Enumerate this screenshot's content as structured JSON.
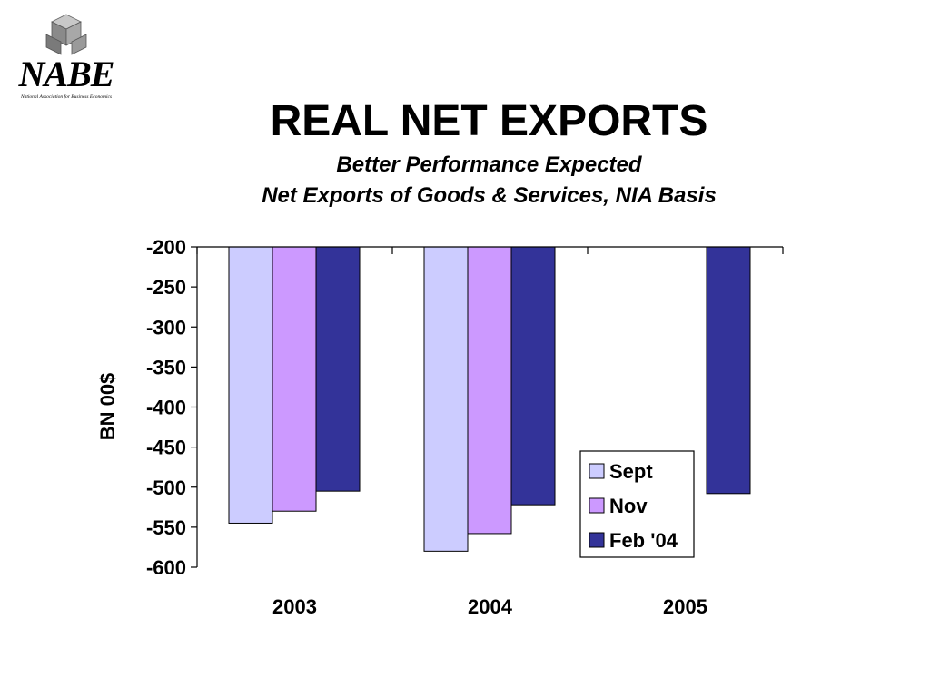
{
  "logo": {
    "name": "NABE",
    "full_name": "National Association for Business Economics"
  },
  "title": "REAL NET EXPORTS",
  "subtitle1": "Better Performance Expected",
  "subtitle2": "Net Exports of Goods & Services, NIA Basis",
  "colors": {
    "Sept": "#ccccff",
    "Nov": "#cc99ff",
    "Feb '04": "#333399"
  },
  "chart_data": {
    "type": "bar",
    "ylabel": "BN 00$",
    "xlabel": "",
    "ylim": [
      -600,
      -200
    ],
    "yticks": [
      -200,
      -250,
      -300,
      -350,
      -400,
      -450,
      -500,
      -550,
      -600
    ],
    "categories": [
      "2003",
      "2004",
      "2005"
    ],
    "series": [
      {
        "name": "Sept",
        "values": [
          -545,
          -580,
          null
        ]
      },
      {
        "name": "Nov",
        "values": [
          -530,
          -558,
          null
        ]
      },
      {
        "name": "Feb '04",
        "values": [
          -505,
          -522,
          -508
        ]
      }
    ],
    "legend_position": "bottom-right",
    "grid": false
  }
}
